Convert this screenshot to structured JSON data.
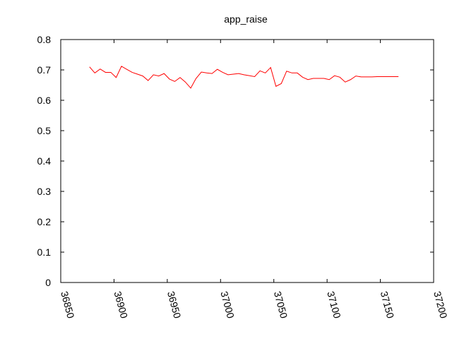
{
  "chart_data": {
    "type": "line",
    "title": "app_raise",
    "xlabel": "",
    "ylabel": "",
    "xlim": [
      36850,
      37200
    ],
    "ylim": [
      0,
      0.8
    ],
    "xticks": [
      36850,
      36900,
      36950,
      37000,
      37050,
      37100,
      37150,
      37200
    ],
    "yticks": [
      0,
      0.1,
      0.2,
      0.3,
      0.4,
      0.5,
      0.6,
      0.7,
      0.8
    ],
    "xtick_labels": [
      "36850",
      "36900",
      "36950",
      "37000",
      "37050",
      "37100",
      "37150",
      "37200"
    ],
    "ytick_labels": [
      "0",
      "0.1",
      "0.2",
      "0.3",
      "0.4",
      "0.5",
      "0.6",
      "0.7",
      "0.8"
    ],
    "grid": false,
    "series": [
      {
        "color": "#ff0000",
        "x": [
          36877,
          36882,
          36887,
          36892,
          36897,
          36902,
          36907,
          36912,
          36917,
          36922,
          36927,
          36932,
          36937,
          36942,
          36947,
          36952,
          36957,
          36962,
          36967,
          36972,
          36977,
          36982,
          36987,
          36992,
          36997,
          37002,
          37007,
          37012,
          37017,
          37022,
          37027,
          37032,
          37037,
          37042,
          37047,
          37052,
          37057,
          37062,
          37067,
          37072,
          37077,
          37082,
          37087,
          37092,
          37097,
          37102,
          37107,
          37112,
          37117,
          37122,
          37127,
          37132,
          37137,
          37142,
          37147,
          37152,
          37157,
          37162,
          37167
        ],
        "y": [
          0.71,
          0.69,
          0.703,
          0.692,
          0.692,
          0.675,
          0.712,
          0.702,
          0.692,
          0.686,
          0.68,
          0.665,
          0.684,
          0.68,
          0.688,
          0.67,
          0.662,
          0.675,
          0.66,
          0.64,
          0.672,
          0.693,
          0.69,
          0.688,
          0.702,
          0.692,
          0.684,
          0.686,
          0.688,
          0.684,
          0.681,
          0.678,
          0.697,
          0.69,
          0.708,
          0.646,
          0.655,
          0.696,
          0.69,
          0.69,
          0.676,
          0.668,
          0.672,
          0.672,
          0.672,
          0.668,
          0.681,
          0.676,
          0.66,
          0.668,
          0.68,
          0.677,
          0.677,
          0.677,
          0.678,
          0.678,
          0.678,
          0.678,
          0.678
        ]
      }
    ]
  }
}
